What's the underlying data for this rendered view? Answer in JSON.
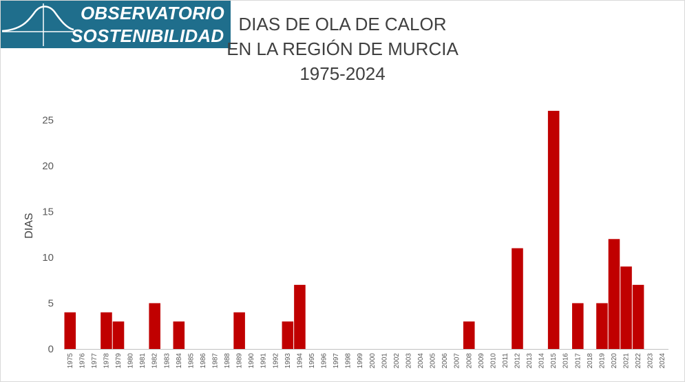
{
  "logo": {
    "line1": "OBSERVATORIO",
    "line2": "SOSTENIBILIDAD"
  },
  "chart_data": {
    "type": "bar",
    "title_lines": [
      "DIAS DE OLA DE CALOR",
      "EN LA REGIÓN DE MURCIA",
      "1975-2024"
    ],
    "xlabel": "",
    "ylabel": "DIAS",
    "ylim": [
      0,
      26
    ],
    "yticks": [
      0,
      5,
      10,
      15,
      20,
      25
    ],
    "grid": false,
    "bar_color": "#c00000",
    "categories": [
      "1975",
      "1976",
      "1977",
      "1978",
      "1979",
      "1980",
      "1981",
      "1982",
      "1983",
      "1984",
      "1985",
      "1986",
      "1987",
      "1988",
      "1989",
      "1990",
      "1991",
      "1992",
      "1993",
      "1994",
      "1995",
      "1996",
      "1997",
      "1998",
      "1999",
      "2000",
      "2001",
      "2002",
      "2003",
      "2004",
      "2005",
      "2006",
      "2007",
      "2008",
      "2009",
      "2010",
      "2011",
      "2012",
      "2013",
      "2014",
      "2015",
      "2016",
      "2017",
      "2018",
      "2019",
      "2020",
      "2021",
      "2022",
      "2023",
      "2024"
    ],
    "values": [
      4,
      0,
      0,
      4,
      3,
      0,
      0,
      5,
      0,
      3,
      0,
      0,
      0,
      0,
      4,
      0,
      0,
      0,
      3,
      7,
      0,
      0,
      0,
      0,
      0,
      0,
      0,
      0,
      0,
      0,
      0,
      0,
      0,
      3,
      0,
      0,
      0,
      11,
      0,
      0,
      26,
      0,
      5,
      0,
      5,
      12,
      9,
      7,
      0,
      0
    ]
  }
}
